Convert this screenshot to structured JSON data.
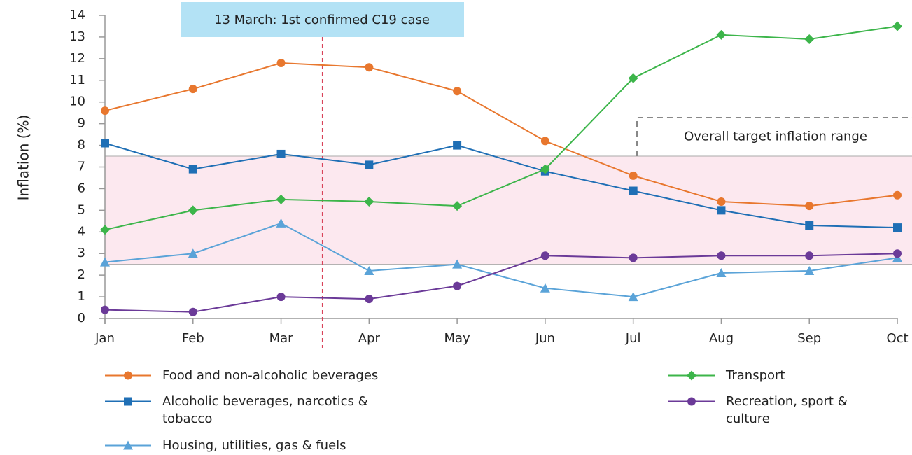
{
  "chart_data": {
    "type": "line",
    "y_label": "Inflation (%)",
    "categories": [
      "Jan",
      "Feb",
      "Mar",
      "Apr",
      "May",
      "Jun",
      "Jul",
      "Aug",
      "Sep",
      "Oct"
    ],
    "ylim": [
      0,
      14
    ],
    "yticks": [
      0,
      1,
      2,
      3,
      4,
      5,
      6,
      7,
      8,
      9,
      10,
      11,
      12,
      13,
      14
    ],
    "grid": false,
    "target_range": {
      "label": "Overall target inflation range",
      "values": [
        2.5,
        7.5
      ],
      "color": "#fce8ef"
    },
    "event": {
      "label": "13 March: 1st confirmed C19 case",
      "x": 2.47,
      "color": "#d9435a"
    },
    "series": [
      {
        "name": "Food and non-alcoholic beverages",
        "color": "#e8772e",
        "marker": "circle",
        "values": [
          9.6,
          10.6,
          11.8,
          11.6,
          10.5,
          8.2,
          6.6,
          5.4,
          5.2,
          5.7
        ]
      },
      {
        "name": "Alcoholic beverages, narcotics & tobacco",
        "color": "#1f6fb5",
        "marker": "square",
        "values": [
          8.1,
          6.9,
          7.6,
          7.1,
          8.0,
          6.8,
          5.9,
          5.0,
          4.3,
          4.2
        ]
      },
      {
        "name": "Housing, utilities, gas & fuels",
        "color": "#5aa3d8",
        "marker": "triangle",
        "values": [
          2.6,
          3.0,
          4.4,
          2.2,
          2.5,
          1.4,
          1.0,
          2.1,
          2.2,
          2.8
        ]
      },
      {
        "name": "Transport",
        "color": "#3cb54a",
        "marker": "diamond",
        "values": [
          4.1,
          5.0,
          5.5,
          5.4,
          5.2,
          6.9,
          11.1,
          13.1,
          12.9,
          13.5
        ]
      },
      {
        "name": "Recreation, sport & culture",
        "color": "#6b3a98",
        "marker": "circle",
        "values": [
          0.4,
          0.3,
          1.0,
          0.9,
          1.5,
          2.9,
          2.8,
          2.9,
          2.9,
          3.0
        ]
      }
    ]
  }
}
